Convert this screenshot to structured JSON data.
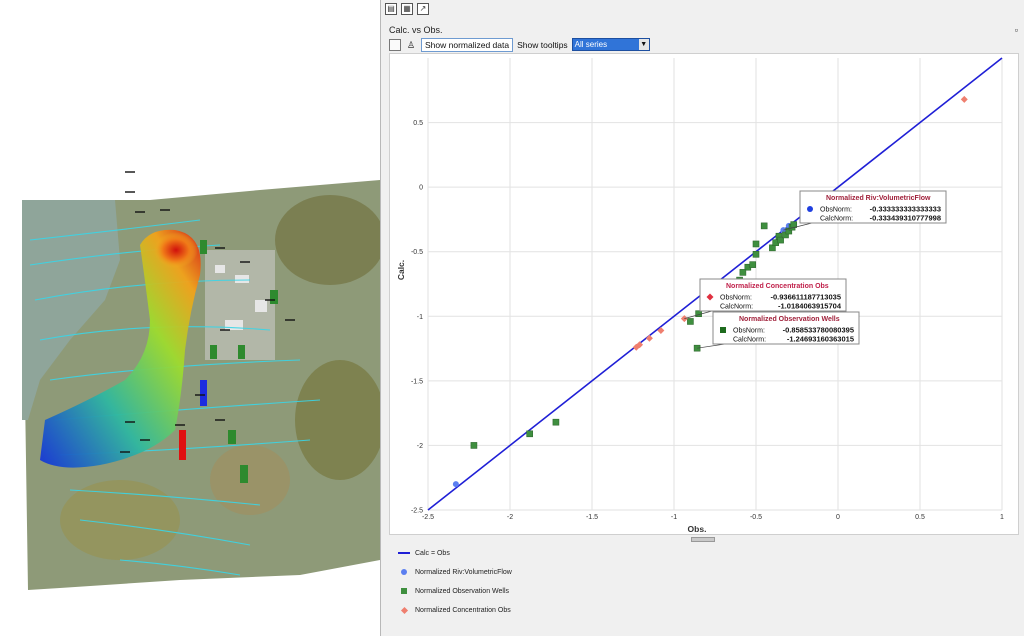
{
  "toolbar": {
    "icons": [
      "clipboard-icon",
      "table-icon",
      "chart-icon"
    ]
  },
  "panel": {
    "title": "Calc. vs Obs.",
    "maximize_icon": "maximize-icon",
    "show_normalized_label": "Show normalized data",
    "show_tooltips_label": "Show tooltips",
    "series_selected": "All series"
  },
  "chart_data": {
    "type": "scatter",
    "title": "",
    "xlabel": "Obs.",
    "ylabel": "Calc.",
    "xlim": [
      -2.5,
      1
    ],
    "ylim": [
      -2.5,
      1
    ],
    "x_ticks": [
      "-2.5",
      "-2",
      "-1.5",
      "-1",
      "-0.5",
      "0",
      "0.5",
      "1"
    ],
    "y_ticks": [
      "-2.5",
      "-2",
      "-1.5",
      "-1",
      "-0.5",
      "0",
      "0.5"
    ],
    "grid": true,
    "line": {
      "name": "Calc = Obs",
      "color": "#1f1fd6",
      "x": [
        -2.5,
        1
      ],
      "y": [
        -2.5,
        1
      ]
    },
    "series": [
      {
        "name": "Normalized Riv:VolumetricFlow",
        "marker": "circle",
        "color": "#5b7ff0",
        "points": [
          [
            -2.33,
            -2.3
          ],
          [
            -0.333,
            -0.333
          ],
          [
            -0.3,
            -0.3
          ]
        ]
      },
      {
        "name": "Normalized Observation Wells",
        "marker": "square",
        "color": "#3f8f3f",
        "points": [
          [
            -2.22,
            -2.0
          ],
          [
            -1.88,
            -1.91
          ],
          [
            -1.72,
            -1.82
          ],
          [
            -0.9,
            -1.04
          ],
          [
            -0.859,
            -1.247
          ],
          [
            -0.85,
            -0.98
          ],
          [
            -0.7,
            -0.85
          ],
          [
            -0.6,
            -0.72
          ],
          [
            -0.55,
            -0.62
          ],
          [
            -0.52,
            -0.6
          ],
          [
            -0.5,
            -0.52
          ],
          [
            -0.45,
            -0.3
          ],
          [
            -0.4,
            -0.47
          ],
          [
            -0.38,
            -0.43
          ],
          [
            -0.36,
            -0.38
          ],
          [
            -0.35,
            -0.41
          ],
          [
            -0.32,
            -0.37
          ],
          [
            -0.3,
            -0.34
          ],
          [
            -0.28,
            -0.31
          ],
          [
            -0.27,
            -0.29
          ],
          [
            -0.5,
            -0.44
          ],
          [
            -0.58,
            -0.66
          ]
        ]
      },
      {
        "name": "Normalized Concentration Obs",
        "marker": "diamond",
        "color": "#ef7f6f",
        "points": [
          [
            -1.23,
            -1.24
          ],
          [
            -1.21,
            -1.22
          ],
          [
            -1.15,
            -1.17
          ],
          [
            -1.08,
            -1.11
          ],
          [
            -0.937,
            -1.018
          ],
          [
            0.77,
            0.68
          ]
        ]
      }
    ],
    "tooltips": [
      {
        "title": "Normalized Riv:VolumetricFlow",
        "title_color": "#a0203a",
        "marker": "circle",
        "marker_color": "#1f3fe0",
        "obs_label": "ObsNorm:",
        "obs_value": "-0.333333333333333",
        "calc_label": "CalcNorm:",
        "calc_value": "-0.333439310777998"
      },
      {
        "title": "Normalized Concentration Obs",
        "title_color": "#c0204a",
        "marker": "diamond",
        "marker_color": "#e03040",
        "obs_label": "ObsNorm:",
        "obs_value": "-0.936611187713035",
        "calc_label": "CalcNorm:",
        "calc_value": "-1.0184063915704"
      },
      {
        "title": "Normalized Observation Wells",
        "title_color": "#a0203a",
        "marker": "square",
        "marker_color": "#1e6b1e",
        "obs_label": "ObsNorm:",
        "obs_value": "-0.858533780080395",
        "calc_label": "CalcNorm:",
        "calc_value": "-1.24693160363015"
      }
    ]
  },
  "legend": {
    "items": [
      {
        "label": "Calc = Obs",
        "marker": "line",
        "color": "#1f1fd6"
      },
      {
        "label": "Normalized Riv:VolumetricFlow",
        "marker": "circle",
        "color": "#5b7ff0"
      },
      {
        "label": "Normalized Observation Wells",
        "marker": "square",
        "color": "#3f8f3f"
      },
      {
        "label": "Normalized Concentration Obs",
        "marker": "diamond",
        "color": "#ef7f6f"
      }
    ]
  },
  "map": {
    "description_icon": "groundwater-plume-map-image"
  }
}
